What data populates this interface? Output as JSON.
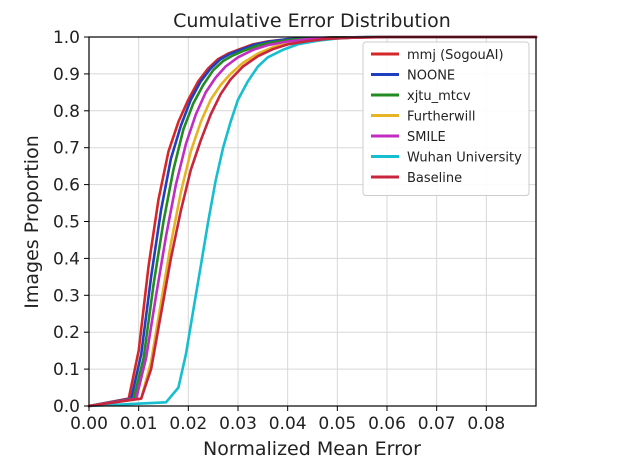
{
  "chart_data": {
    "type": "line",
    "title": "Cumulative Error Distribution",
    "xlabel": "Normalized Mean Error",
    "ylabel": "Images Proportion",
    "xlim": [
      0.0,
      0.09
    ],
    "ylim": [
      0.0,
      1.0
    ],
    "xticks": [
      "0.00",
      "0.01",
      "0.02",
      "0.03",
      "0.04",
      "0.05",
      "0.06",
      "0.07",
      "0.08"
    ],
    "yticks": [
      "0.0",
      "0.1",
      "0.2",
      "0.3",
      "0.4",
      "0.5",
      "0.6",
      "0.7",
      "0.8",
      "0.9",
      "1.0"
    ],
    "grid": true,
    "legend_position": "top-right",
    "series": [
      {
        "name": "mmj (SogouAI)",
        "color": "#d62728",
        "x": [
          0.0,
          0.008,
          0.01,
          0.012,
          0.014,
          0.016,
          0.018,
          0.02,
          0.022,
          0.024,
          0.026,
          0.028,
          0.03,
          0.033,
          0.036,
          0.04,
          0.045,
          0.05,
          0.06,
          0.09
        ],
        "y": [
          0.0,
          0.02,
          0.15,
          0.38,
          0.56,
          0.69,
          0.77,
          0.83,
          0.88,
          0.915,
          0.94,
          0.955,
          0.965,
          0.98,
          0.988,
          0.994,
          0.997,
          0.999,
          1.0,
          1.0
        ]
      },
      {
        "name": "NOONE",
        "color": "#1f3fbf",
        "x": [
          0.0,
          0.0085,
          0.0105,
          0.0125,
          0.0145,
          0.0165,
          0.0185,
          0.0205,
          0.0225,
          0.0245,
          0.0265,
          0.0285,
          0.0305,
          0.0335,
          0.0365,
          0.04,
          0.045,
          0.05,
          0.06,
          0.09
        ],
        "y": [
          0.0,
          0.02,
          0.14,
          0.35,
          0.53,
          0.67,
          0.76,
          0.83,
          0.88,
          0.915,
          0.94,
          0.955,
          0.965,
          0.98,
          0.988,
          0.994,
          0.997,
          0.999,
          1.0,
          1.0
        ]
      },
      {
        "name": "xjtu_mtcv",
        "color": "#228b22",
        "x": [
          0.0,
          0.009,
          0.011,
          0.013,
          0.015,
          0.017,
          0.019,
          0.021,
          0.023,
          0.025,
          0.027,
          0.029,
          0.031,
          0.034,
          0.037,
          0.041,
          0.046,
          0.05,
          0.06,
          0.09
        ],
        "y": [
          0.0,
          0.02,
          0.13,
          0.33,
          0.5,
          0.64,
          0.75,
          0.82,
          0.87,
          0.91,
          0.935,
          0.95,
          0.962,
          0.977,
          0.986,
          0.993,
          0.997,
          0.999,
          1.0,
          1.0
        ]
      },
      {
        "name": "Furtherwill",
        "color": "#e6b422",
        "x": [
          0.0,
          0.0105,
          0.0125,
          0.0145,
          0.0165,
          0.0185,
          0.0205,
          0.0225,
          0.0245,
          0.0265,
          0.0285,
          0.031,
          0.034,
          0.037,
          0.04,
          0.044,
          0.048,
          0.053,
          0.06,
          0.09
        ],
        "y": [
          0.0,
          0.02,
          0.12,
          0.28,
          0.44,
          0.58,
          0.69,
          0.77,
          0.83,
          0.87,
          0.9,
          0.93,
          0.955,
          0.972,
          0.983,
          0.991,
          0.996,
          0.999,
          1.0,
          1.0
        ]
      },
      {
        "name": "SMILE",
        "color": "#c02dc0",
        "x": [
          0.0,
          0.0095,
          0.0115,
          0.0135,
          0.0155,
          0.0175,
          0.0195,
          0.0215,
          0.0235,
          0.0255,
          0.0275,
          0.03,
          0.033,
          0.036,
          0.04,
          0.044,
          0.048,
          0.053,
          0.06,
          0.09
        ],
        "y": [
          0.0,
          0.02,
          0.13,
          0.3,
          0.46,
          0.6,
          0.71,
          0.79,
          0.85,
          0.89,
          0.92,
          0.945,
          0.965,
          0.978,
          0.988,
          0.994,
          0.997,
          0.999,
          1.0,
          1.0
        ]
      },
      {
        "name": "Wuhan University",
        "color": "#17becf",
        "x": [
          0.0,
          0.0155,
          0.018,
          0.0195,
          0.021,
          0.0225,
          0.024,
          0.0255,
          0.027,
          0.0285,
          0.03,
          0.032,
          0.034,
          0.036,
          0.039,
          0.042,
          0.046,
          0.05,
          0.056,
          0.09
        ],
        "y": [
          0.0,
          0.01,
          0.05,
          0.14,
          0.26,
          0.38,
          0.5,
          0.61,
          0.7,
          0.77,
          0.83,
          0.88,
          0.92,
          0.945,
          0.965,
          0.98,
          0.99,
          0.996,
          1.0,
          1.0
        ]
      },
      {
        "name": "Baseline",
        "color": "#c8263e",
        "x": [
          0.0,
          0.0105,
          0.0125,
          0.0145,
          0.0165,
          0.0185,
          0.0205,
          0.0225,
          0.0245,
          0.0265,
          0.0285,
          0.031,
          0.034,
          0.037,
          0.04,
          0.044,
          0.048,
          0.053,
          0.06,
          0.09
        ],
        "y": [
          0.0,
          0.02,
          0.1,
          0.25,
          0.4,
          0.53,
          0.64,
          0.72,
          0.79,
          0.845,
          0.885,
          0.92,
          0.948,
          0.967,
          0.98,
          0.989,
          0.995,
          0.998,
          1.0,
          1.0
        ]
      }
    ]
  }
}
